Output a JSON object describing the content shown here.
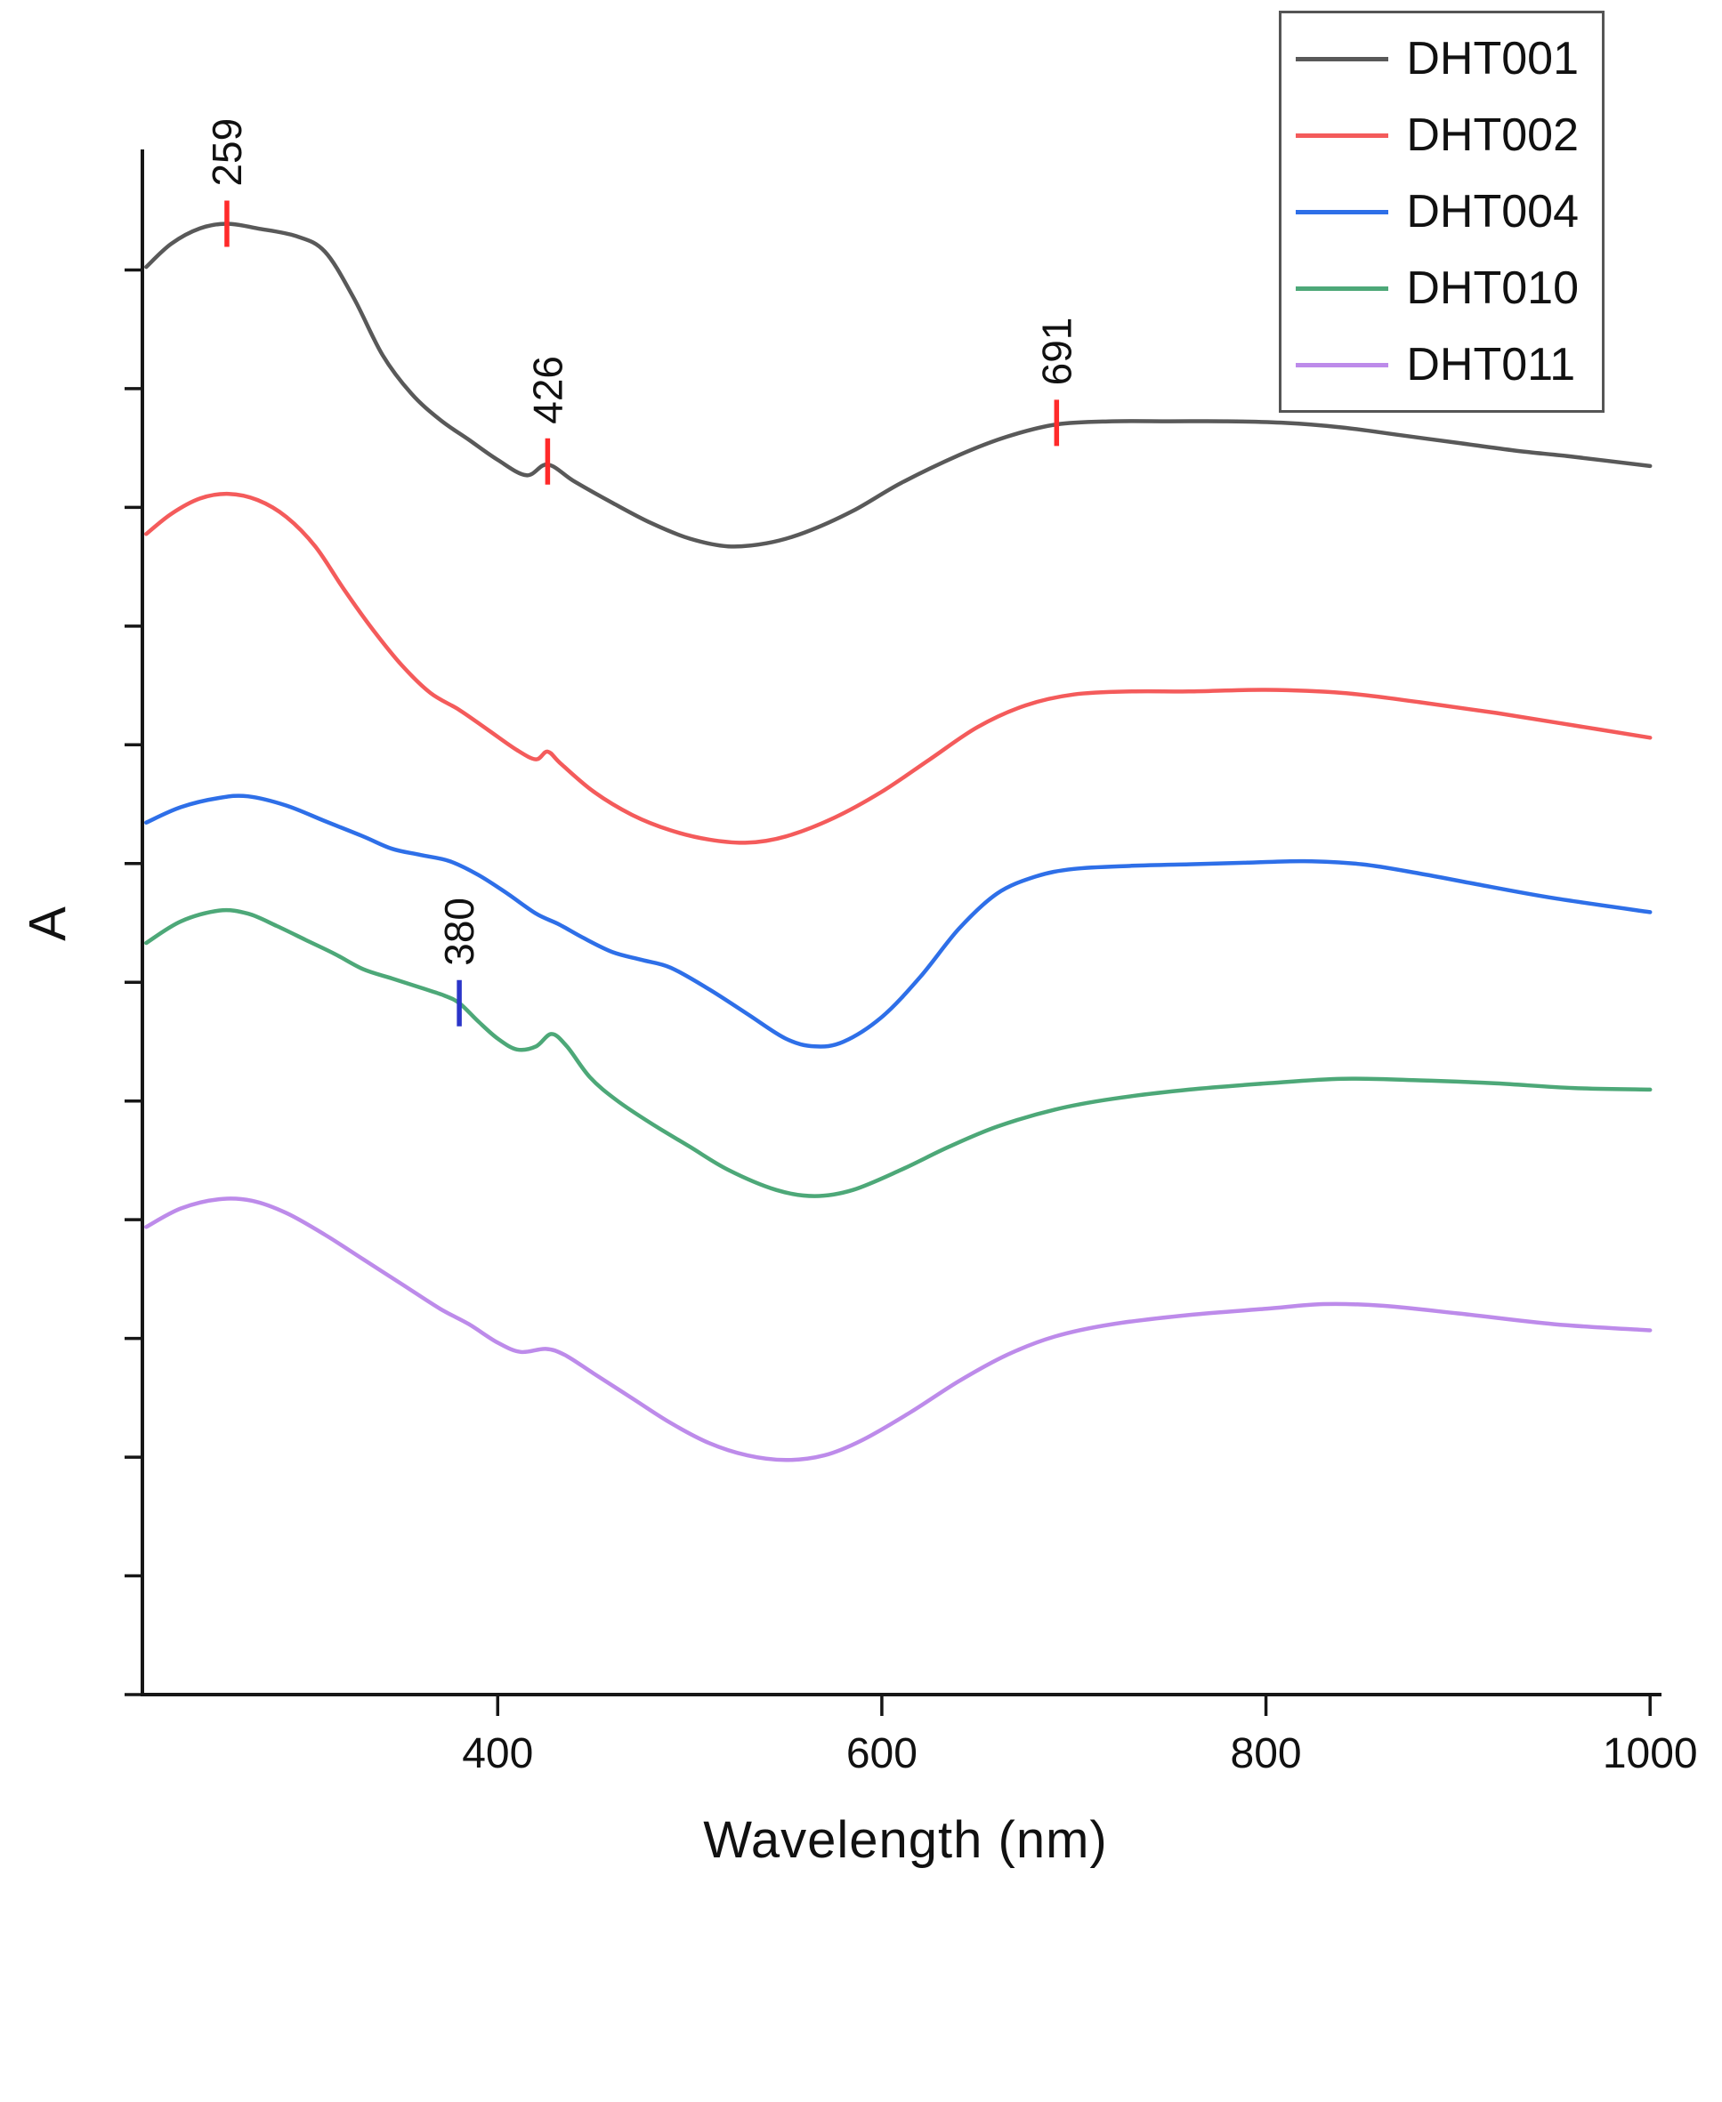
{
  "figure_title": "",
  "chart_data": {
    "type": "line",
    "title": "",
    "xlabel": "Wavelength (nm)",
    "ylabel": "A",
    "x_range": [
      215,
      1005
    ],
    "x_ticks": [
      400,
      600,
      800,
      1000
    ],
    "y_axis": {
      "tick_count": 13,
      "labels_visible": false,
      "note": "absorbance in arbitrary units, no numeric tick labels shown"
    },
    "axis_color": "#161616",
    "grid": false,
    "legend": {
      "position": "top-right",
      "entries": [
        {
          "label": "DHT001",
          "color": "#595959"
        },
        {
          "label": "DHT002",
          "color": "#f45b5b"
        },
        {
          "label": "DHT004",
          "color": "#2e6fe8"
        },
        {
          "label": "DHT010",
          "color": "#4da878"
        },
        {
          "label": "DHT011",
          "color": "#bd8bea"
        }
      ]
    },
    "annotations": [
      {
        "label": "259",
        "x": 259,
        "y": 0.953,
        "series": "DHT001",
        "tick_color": "#ff2a2a"
      },
      {
        "label": "426",
        "x": 426,
        "y": 0.799,
        "series": "DHT001",
        "tick_color": "#ff2a2a"
      },
      {
        "label": "691",
        "x": 691,
        "y": 0.824,
        "series": "DHT001",
        "tick_color": "#ff2a2a"
      },
      {
        "label": "380",
        "x": 380,
        "y": 0.448,
        "series": "DHT010",
        "tick_color": "#2b35c9"
      }
    ],
    "series": [
      {
        "name": "DHT001",
        "color": "#595959",
        "points": [
          [
            217,
            0.925
          ],
          [
            230,
            0.94
          ],
          [
            245,
            0.95
          ],
          [
            259,
            0.953
          ],
          [
            275,
            0.95
          ],
          [
            295,
            0.945
          ],
          [
            310,
            0.935
          ],
          [
            325,
            0.905
          ],
          [
            340,
            0.868
          ],
          [
            355,
            0.843
          ],
          [
            370,
            0.826
          ],
          [
            385,
            0.813
          ],
          [
            400,
            0.8
          ],
          [
            415,
            0.79
          ],
          [
            426,
            0.797
          ],
          [
            440,
            0.786
          ],
          [
            460,
            0.772
          ],
          [
            480,
            0.759
          ],
          [
            500,
            0.749
          ],
          [
            520,
            0.744
          ],
          [
            540,
            0.746
          ],
          [
            560,
            0.753
          ],
          [
            585,
            0.767
          ],
          [
            610,
            0.785
          ],
          [
            640,
            0.803
          ],
          [
            665,
            0.815
          ],
          [
            691,
            0.823
          ],
          [
            720,
            0.825
          ],
          [
            750,
            0.825
          ],
          [
            780,
            0.825
          ],
          [
            810,
            0.824
          ],
          [
            840,
            0.821
          ],
          [
            870,
            0.816
          ],
          [
            900,
            0.811
          ],
          [
            930,
            0.806
          ],
          [
            960,
            0.802
          ],
          [
            1000,
            0.796
          ]
        ]
      },
      {
        "name": "DHT002",
        "color": "#f45b5b",
        "points": [
          [
            217,
            0.752
          ],
          [
            230,
            0.765
          ],
          [
            245,
            0.775
          ],
          [
            260,
            0.778
          ],
          [
            275,
            0.774
          ],
          [
            290,
            0.763
          ],
          [
            305,
            0.744
          ],
          [
            320,
            0.716
          ],
          [
            335,
            0.69
          ],
          [
            350,
            0.667
          ],
          [
            365,
            0.649
          ],
          [
            380,
            0.638
          ],
          [
            395,
            0.625
          ],
          [
            410,
            0.612
          ],
          [
            420,
            0.606
          ],
          [
            426,
            0.611
          ],
          [
            433,
            0.603
          ],
          [
            450,
            0.585
          ],
          [
            470,
            0.57
          ],
          [
            490,
            0.56
          ],
          [
            510,
            0.554
          ],
          [
            530,
            0.552
          ],
          [
            550,
            0.556
          ],
          [
            575,
            0.568
          ],
          [
            600,
            0.585
          ],
          [
            625,
            0.606
          ],
          [
            650,
            0.627
          ],
          [
            675,
            0.641
          ],
          [
            700,
            0.648
          ],
          [
            730,
            0.65
          ],
          [
            760,
            0.65
          ],
          [
            800,
            0.651
          ],
          [
            840,
            0.649
          ],
          [
            880,
            0.643
          ],
          [
            920,
            0.636
          ],
          [
            960,
            0.628
          ],
          [
            1000,
            0.62
          ]
        ]
      },
      {
        "name": "DHT004",
        "color": "#2e6fe8",
        "points": [
          [
            217,
            0.565
          ],
          [
            235,
            0.575
          ],
          [
            255,
            0.581
          ],
          [
            270,
            0.582
          ],
          [
            290,
            0.576
          ],
          [
            310,
            0.566
          ],
          [
            330,
            0.556
          ],
          [
            345,
            0.548
          ],
          [
            360,
            0.544
          ],
          [
            375,
            0.54
          ],
          [
            390,
            0.531
          ],
          [
            405,
            0.519
          ],
          [
            420,
            0.506
          ],
          [
            432,
            0.499
          ],
          [
            445,
            0.49
          ],
          [
            460,
            0.481
          ],
          [
            475,
            0.476
          ],
          [
            490,
            0.471
          ],
          [
            510,
            0.457
          ],
          [
            530,
            0.441
          ],
          [
            550,
            0.425
          ],
          [
            565,
            0.42
          ],
          [
            580,
            0.423
          ],
          [
            600,
            0.439
          ],
          [
            620,
            0.465
          ],
          [
            640,
            0.496
          ],
          [
            660,
            0.519
          ],
          [
            680,
            0.53
          ],
          [
            700,
            0.535
          ],
          [
            730,
            0.537
          ],
          [
            760,
            0.538
          ],
          [
            790,
            0.539
          ],
          [
            820,
            0.54
          ],
          [
            850,
            0.538
          ],
          [
            880,
            0.532
          ],
          [
            910,
            0.525
          ],
          [
            950,
            0.516
          ],
          [
            1000,
            0.507
          ]
        ]
      },
      {
        "name": "DHT010",
        "color": "#4da878",
        "points": [
          [
            217,
            0.487
          ],
          [
            235,
            0.501
          ],
          [
            255,
            0.508
          ],
          [
            270,
            0.506
          ],
          [
            285,
            0.498
          ],
          [
            300,
            0.489
          ],
          [
            315,
            0.48
          ],
          [
            330,
            0.47
          ],
          [
            345,
            0.464
          ],
          [
            360,
            0.458
          ],
          [
            372,
            0.453
          ],
          [
            380,
            0.448
          ],
          [
            390,
            0.436
          ],
          [
            400,
            0.425
          ],
          [
            410,
            0.418
          ],
          [
            420,
            0.42
          ],
          [
            428,
            0.428
          ],
          [
            436,
            0.42
          ],
          [
            448,
            0.4
          ],
          [
            462,
            0.385
          ],
          [
            480,
            0.37
          ],
          [
            500,
            0.355
          ],
          [
            520,
            0.34
          ],
          [
            545,
            0.327
          ],
          [
            565,
            0.323
          ],
          [
            585,
            0.327
          ],
          [
            610,
            0.34
          ],
          [
            635,
            0.355
          ],
          [
            660,
            0.368
          ],
          [
            690,
            0.379
          ],
          [
            720,
            0.386
          ],
          [
            760,
            0.392
          ],
          [
            800,
            0.396
          ],
          [
            840,
            0.399
          ],
          [
            880,
            0.398
          ],
          [
            920,
            0.396
          ],
          [
            960,
            0.393
          ],
          [
            1000,
            0.392
          ]
        ]
      },
      {
        "name": "DHT011",
        "color": "#bd8bea",
        "points": [
          [
            217,
            0.303
          ],
          [
            235,
            0.315
          ],
          [
            255,
            0.321
          ],
          [
            272,
            0.32
          ],
          [
            290,
            0.312
          ],
          [
            310,
            0.298
          ],
          [
            330,
            0.282
          ],
          [
            350,
            0.266
          ],
          [
            370,
            0.25
          ],
          [
            385,
            0.24
          ],
          [
            400,
            0.228
          ],
          [
            412,
            0.222
          ],
          [
            425,
            0.224
          ],
          [
            435,
            0.22
          ],
          [
            450,
            0.208
          ],
          [
            470,
            0.192
          ],
          [
            490,
            0.176
          ],
          [
            510,
            0.163
          ],
          [
            530,
            0.155
          ],
          [
            550,
            0.152
          ],
          [
            570,
            0.155
          ],
          [
            590,
            0.165
          ],
          [
            615,
            0.183
          ],
          [
            640,
            0.203
          ],
          [
            665,
            0.22
          ],
          [
            690,
            0.232
          ],
          [
            720,
            0.24
          ],
          [
            760,
            0.246
          ],
          [
            800,
            0.25
          ],
          [
            830,
            0.253
          ],
          [
            860,
            0.252
          ],
          [
            900,
            0.247
          ],
          [
            950,
            0.24
          ],
          [
            1000,
            0.236
          ]
        ]
      }
    ]
  }
}
